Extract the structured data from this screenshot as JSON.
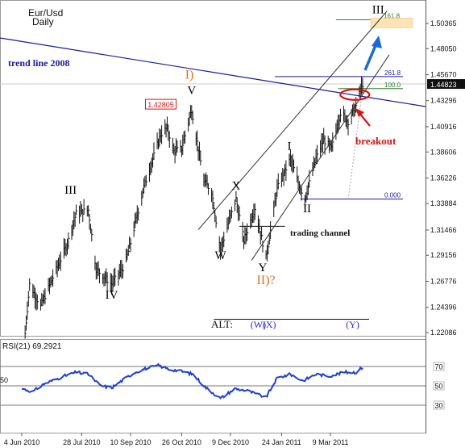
{
  "chart_data": {
    "type": "bar",
    "symbol": "Eur/Usd",
    "timeframe": "Daily",
    "price_axis": {
      "ticks": [
        "1.50365",
        "1.48050",
        "1.45670",
        "1.43296",
        "1.40916",
        "1.38606",
        "1.36226",
        "1.33884",
        "1.31466",
        "1.29156",
        "1.26776",
        "1.24396",
        "1.22086"
      ],
      "last_price": "1.44823",
      "range": [
        1.218,
        1.513
      ]
    },
    "date_axis": {
      "ticks": [
        "4 Jun 2010",
        "28 Jul 2010",
        "10 Sep 2010",
        "26 Oct 2010",
        "9 Dec 2010",
        "24 Jan 2011",
        "9 Mar 2011"
      ]
    },
    "key_points": [
      {
        "date": "7 Jun 2010",
        "price": 1.22
      },
      {
        "date": "11 Jun 2010",
        "price": 1.265
      },
      {
        "date": "21 Jun 2010",
        "price": 1.245
      },
      {
        "date": "15 Jul 2010",
        "price": 1.302
      },
      {
        "date": "23 Jul 2010",
        "price": 1.33
      },
      {
        "date": "3 Aug 2010",
        "price": 1.333
      },
      {
        "date": "10 Aug 2010",
        "price": 1.279
      },
      {
        "date": "24 Aug 2010",
        "price": 1.265
      },
      {
        "date": "5 Sep 2010",
        "price": 1.283
      },
      {
        "date": "10 Sep 2010",
        "price": 1.303
      },
      {
        "date": "22 Sep 2010",
        "price": 1.354
      },
      {
        "date": "7 Oct 2010",
        "price": 1.402
      },
      {
        "date": "13 Oct 2010",
        "price": 1.408
      },
      {
        "date": "19 Oct 2010",
        "price": 1.387
      },
      {
        "date": "26 Oct 2010",
        "price": 1.389
      },
      {
        "date": "4 Nov 2010",
        "price": 1.425
      },
      {
        "date": "9 Nov 2010",
        "price": 1.395
      },
      {
        "date": "15 Nov 2010",
        "price": 1.36
      },
      {
        "date": "22 Nov 2010",
        "price": 1.35
      },
      {
        "date": "30 Nov 2010",
        "price": 1.297
      },
      {
        "date": "9 Dec 2010",
        "price": 1.327
      },
      {
        "date": "14 Dec 2010",
        "price": 1.343
      },
      {
        "date": "21 Dec 2010",
        "price": 1.305
      },
      {
        "date": "31 Dec 2010",
        "price": 1.335
      },
      {
        "date": "10 Jan 2011",
        "price": 1.289
      },
      {
        "date": "20 Jan 2011",
        "price": 1.352
      },
      {
        "date": "1 Feb 2011",
        "price": 1.38
      },
      {
        "date": "8 Feb 2011",
        "price": 1.358
      },
      {
        "date": "14 Feb 2011",
        "price": 1.343
      },
      {
        "date": "24 Feb 2011",
        "price": 1.38
      },
      {
        "date": "3 Mar 2011",
        "price": 1.397
      },
      {
        "date": "10 Mar 2011",
        "price": 1.389
      },
      {
        "date": "18 Mar 2011",
        "price": 1.422
      },
      {
        "date": "25 Mar 2011",
        "price": 1.414
      },
      {
        "date": "1 Apr 2011",
        "price": 1.428
      },
      {
        "date": "5 Apr 2011",
        "price": 1.442
      },
      {
        "date": "7 Apr 2011",
        "price": 1.448
      }
    ],
    "wave_labels": [
      {
        "text": "III",
        "date": "18 Jul 2010",
        "price": 1.348,
        "color": "#000000"
      },
      {
        "text": "IV",
        "date": "24 Aug 2010",
        "price": 1.252,
        "color": "#000000"
      },
      {
        "text": "V",
        "date": "4 Nov 2010",
        "price": 1.439,
        "color": "#000000"
      },
      {
        "text": "I)",
        "date": "2 Nov 2010",
        "price": 1.453,
        "color": "#e07020"
      },
      {
        "text": "W",
        "date": "30 Nov 2010",
        "price": 1.288,
        "color": "#000000"
      },
      {
        "text": "X",
        "date": "14 Dec 2010",
        "price": 1.352,
        "color": "#000000"
      },
      {
        "text": "Y",
        "date": "7 Jan 2011",
        "price": 1.277,
        "color": "#000000"
      },
      {
        "text": "II)?",
        "date": "10 Jan 2011",
        "price": 1.265,
        "color": "#e07020"
      },
      {
        "text": "I",
        "date": "31 Jan 2011",
        "price": 1.388,
        "color": "#000000"
      },
      {
        "text": "II",
        "date": "16 Feb 2011",
        "price": 1.331,
        "color": "#000000"
      },
      {
        "text": "III",
        "date": "21 Apr 2011",
        "price": 1.513,
        "color": "#000000"
      }
    ],
    "price_tag": {
      "text": "1.42805",
      "date": "21 Oct 2010",
      "price": 1.429
    },
    "fibonacci": {
      "anchor_high": {
        "date": "7 Apr 2011",
        "price": 1.444
      },
      "anchor_low": {
        "date": "14 Feb 2011",
        "price": 1.343
      },
      "levels": [
        {
          "label": "161.8",
          "price": 1.507
        },
        {
          "label": "261.8",
          "price": 1.455
        },
        {
          "label": "100.0",
          "price": 1.444
        },
        {
          "label": "0.000",
          "price": 1.343
        }
      ]
    },
    "annotations": {
      "trend_line": "trend line 2008",
      "breakout": "breakout",
      "trading_channel": "trading channel",
      "alt_label": "ALT:",
      "alt_waves": [
        "(W)",
        "(X)",
        "(Y)"
      ]
    },
    "rsi": {
      "label": "RSI(21) 69.2921",
      "period": 21,
      "last_value": 69.2921,
      "ticks": [
        "70",
        "50",
        "30"
      ],
      "side_label": "50",
      "range": [
        14,
        86
      ],
      "key_points": [
        {
          "date": "4 Jun 2010",
          "value": 47
        },
        {
          "date": "14 Jun 2010",
          "value": 44
        },
        {
          "date": "24 Jun 2010",
          "value": 52
        },
        {
          "date": "12 Jul 2010",
          "value": 60
        },
        {
          "date": "23 Jul 2010",
          "value": 64
        },
        {
          "date": "3 Aug 2010",
          "value": 62
        },
        {
          "date": "14 Aug 2010",
          "value": 50
        },
        {
          "date": "24 Aug 2010",
          "value": 48
        },
        {
          "date": "3 Sep 2010",
          "value": 56
        },
        {
          "date": "14 Sep 2010",
          "value": 64
        },
        {
          "date": "24 Sep 2010",
          "value": 68
        },
        {
          "date": "5 Oct 2010",
          "value": 71
        },
        {
          "date": "15 Oct 2010",
          "value": 67
        },
        {
          "date": "26 Oct 2010",
          "value": 65
        },
        {
          "date": "5 Nov 2010",
          "value": 62
        },
        {
          "date": "17 Nov 2010",
          "value": 48
        },
        {
          "date": "30 Nov 2010",
          "value": 37
        },
        {
          "date": "13 Dec 2010",
          "value": 47
        },
        {
          "date": "24 Dec 2010",
          "value": 45
        },
        {
          "date": "10 Jan 2011",
          "value": 38
        },
        {
          "date": "20 Jan 2011",
          "value": 58
        },
        {
          "date": "1 Feb 2011",
          "value": 62
        },
        {
          "date": "12 Feb 2011",
          "value": 55
        },
        {
          "date": "24 Feb 2011",
          "value": 62
        },
        {
          "date": "8 Mar 2011",
          "value": 60
        },
        {
          "date": "21 Mar 2011",
          "value": 64
        },
        {
          "date": "1 Apr 2011",
          "value": 64
        },
        {
          "date": "7 Apr 2011",
          "value": 69.3
        }
      ]
    },
    "colors": {
      "bars": "#111111",
      "trend_line": "#1a1aa0",
      "channel": "#333333",
      "fib_161": "#2e7d2e",
      "fib_261": "#1a1aa0",
      "fib_100": "#2e7d2e",
      "fib_0": "#1a1aa0",
      "rsi_line": "#1f3fd6",
      "wave_label_orange": "#e07020",
      "breakout": "#dd1111",
      "target_box": "#fde3b5",
      "arrow": "#1a6ad6"
    }
  }
}
